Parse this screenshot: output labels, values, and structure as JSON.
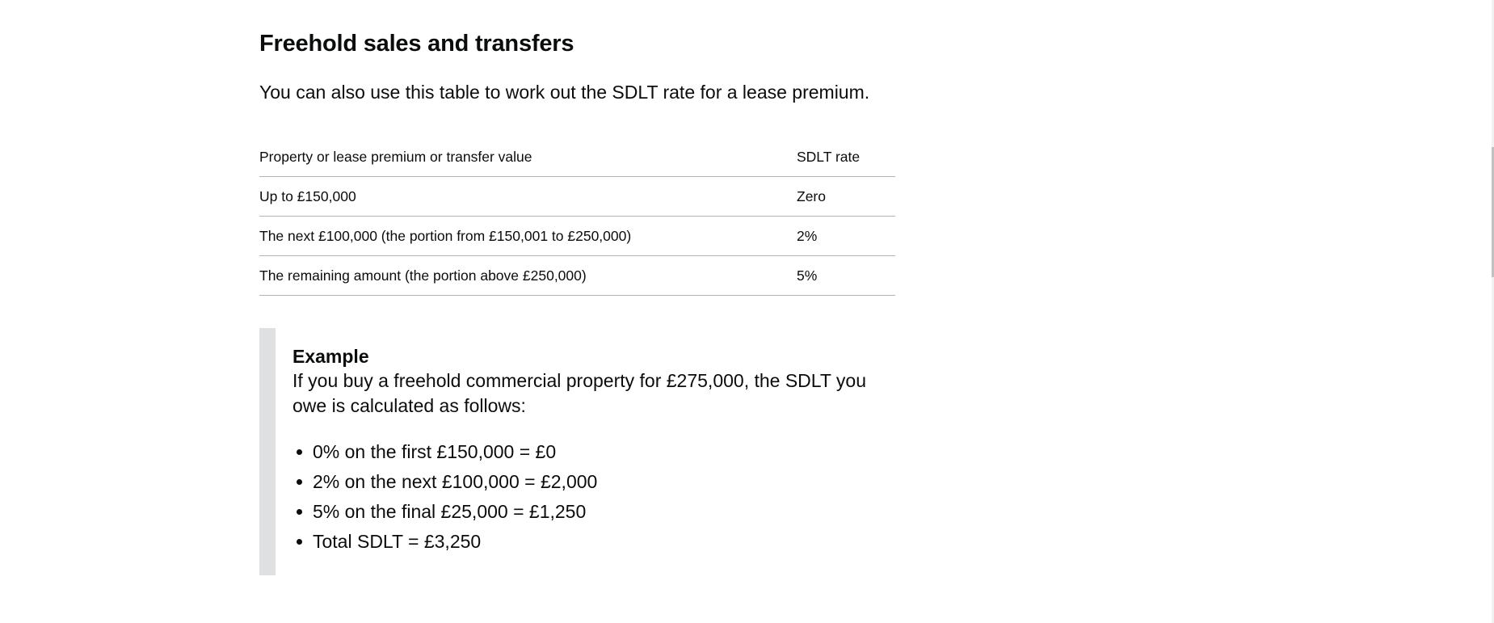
{
  "section": {
    "title": "Freehold sales and transfers",
    "intro": "You can also use this table to work out the SDLT rate for a lease premium."
  },
  "table": {
    "headers": [
      "Property or lease premium or transfer value",
      "SDLT rate"
    ],
    "rows": [
      [
        "Up to £150,000",
        "Zero"
      ],
      [
        "The next £100,000 (the portion from £150,001 to £250,000)",
        "2%"
      ],
      [
        "The remaining amount (the portion above £250,000)",
        "5%"
      ]
    ]
  },
  "example": {
    "title": "Example",
    "text": "If you buy a freehold commercial property for £275,000, the SDLT you owe is calculated as follows:",
    "items": [
      "0% on the first £150,000 = £0",
      "2% on the next £100,000 = £2,000",
      "5% on the final £25,000 = £1,250",
      "Total SDLT = £3,250"
    ]
  },
  "colors": {
    "text": "#0b0c0c",
    "divider": "#b1b4b6",
    "inset_bar": "#dee0e2",
    "scrollbar_track": "#f1f1f1",
    "scrollbar_thumb": "#c1c1c1"
  }
}
